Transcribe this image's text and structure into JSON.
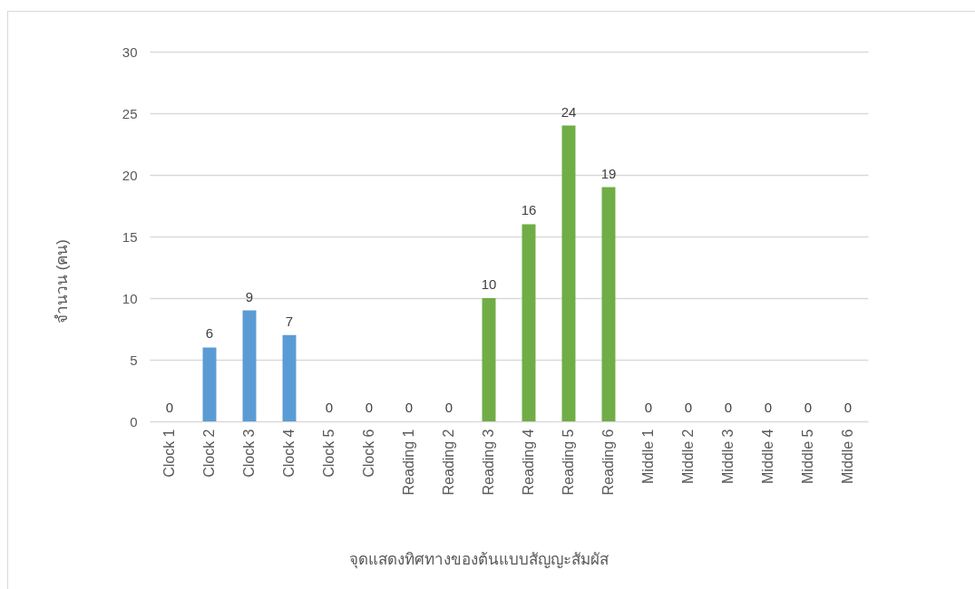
{
  "chart_data": {
    "type": "bar",
    "xlabel": "จุดแสดงทิศทางของต้นแบบสัญญะสัมผัส",
    "ylabel": "จำนวน (คน)",
    "categories": [
      "Clock 1",
      "Clock 2",
      "Clock 3",
      "Clock 4",
      "Clock 5",
      "Clock 6",
      "Reading 1",
      "Reading 2",
      "Reading 3",
      "Reading 4",
      "Reading 5",
      "Reading 6",
      "Middle 1",
      "Middle 2",
      "Middle 3",
      "Middle 4",
      "Middle 5",
      "Middle 6"
    ],
    "values": [
      0,
      6,
      9,
      7,
      0,
      0,
      0,
      0,
      10,
      16,
      24,
      19,
      0,
      0,
      0,
      0,
      0,
      0
    ],
    "colors": [
      "#5b9bd5",
      "#5b9bd5",
      "#5b9bd5",
      "#5b9bd5",
      "#5b9bd5",
      "#5b9bd5",
      "#70ad47",
      "#70ad47",
      "#70ad47",
      "#70ad47",
      "#70ad47",
      "#70ad47",
      "#a5a5a5",
      "#a5a5a5",
      "#a5a5a5",
      "#a5a5a5",
      "#a5a5a5",
      "#a5a5a5"
    ],
    "ylim": [
      0,
      30
    ],
    "yticks": [
      0,
      5,
      10,
      15,
      20,
      25,
      30
    ],
    "grid": "y",
    "data_labels": true
  }
}
